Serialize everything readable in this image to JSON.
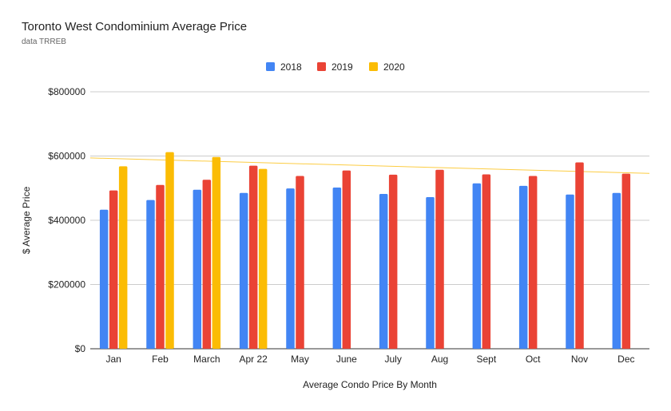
{
  "header": {
    "title": "Toronto West Condominium Average Price",
    "subtitle": "data TRREB"
  },
  "chart_data": {
    "type": "bar",
    "title": "Toronto West Condominium Average Price",
    "subtitle": "data TRREB",
    "xlabel": "Average Condo Price By Month",
    "ylabel": "$ Average Price",
    "ylim": [
      0,
      800000
    ],
    "yticks": [
      0,
      200000,
      400000,
      600000,
      800000
    ],
    "ytick_labels": [
      "$0",
      "$200000",
      "$400000",
      "$600000",
      "$800000"
    ],
    "grid": true,
    "legend_position": "top",
    "categories": [
      "Jan",
      "Feb",
      "March",
      "Apr 22",
      "May",
      "June",
      "July",
      "Aug",
      "Sept",
      "Oct",
      "Nov",
      "Dec"
    ],
    "series": [
      {
        "name": "2018",
        "color": "#4285f4",
        "values": [
          433000,
          463000,
          495000,
          485000,
          499000,
          502000,
          482000,
          472000,
          515000,
          507000,
          480000,
          485000
        ]
      },
      {
        "name": "2019",
        "color": "#ea4335",
        "values": [
          493000,
          510000,
          526000,
          570000,
          538000,
          555000,
          542000,
          557000,
          543000,
          538000,
          580000,
          545000
        ]
      },
      {
        "name": "2020",
        "color": "#fbbc04",
        "values": [
          568000,
          612000,
          597000,
          560000,
          null,
          null,
          null,
          null,
          null,
          null,
          null,
          null
        ]
      }
    ],
    "trendline": {
      "series": "2020",
      "color": "#fbbc04",
      "start": 594000,
      "end": 546000
    }
  }
}
